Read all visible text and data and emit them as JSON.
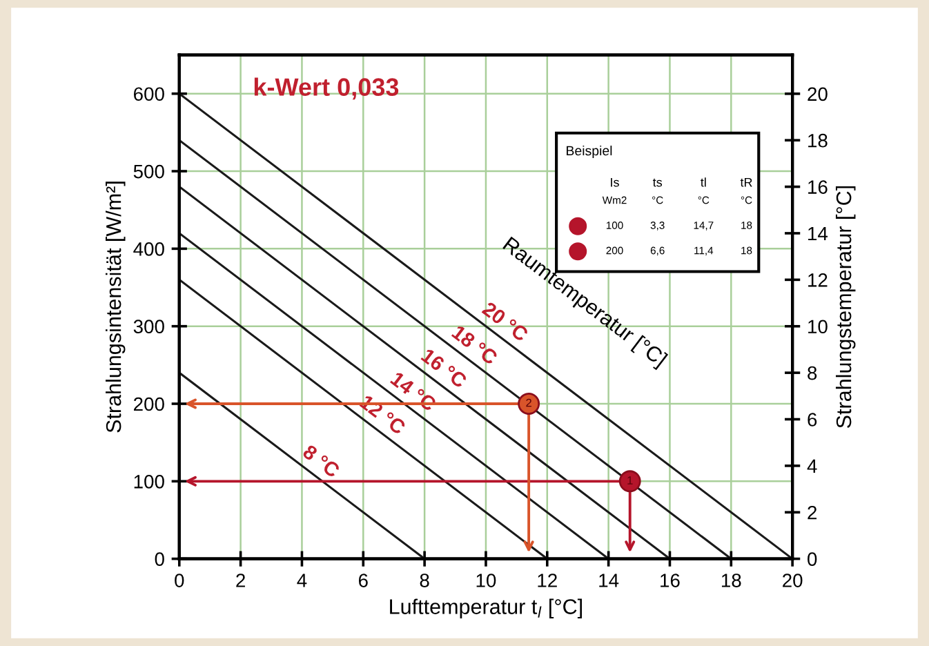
{
  "chart_data": {
    "type": "line",
    "title": "k-Wert 0,033",
    "xlabel": "Lufttemperatur t$_{l}$ [°C]",
    "ylabel": "Strahlungsintensität [W/m²]",
    "y2label": "Strahlungstemperatur [°C]",
    "xlim": [
      0,
      20
    ],
    "xticks": [
      0,
      2,
      4,
      6,
      8,
      10,
      12,
      14,
      16,
      18,
      20
    ],
    "ylim": [
      0,
      650
    ],
    "yticks": [
      0,
      100,
      200,
      300,
      400,
      500,
      600
    ],
    "y2lim": [
      0,
      21.67
    ],
    "y2ticks": [
      0,
      2,
      4,
      6,
      8,
      10,
      12,
      14,
      16,
      18,
      20
    ],
    "grid": true,
    "line_style": "solid",
    "marker": "none",
    "series": [
      {
        "name": "20 °C",
        "color": "#1a1a1a",
        "x": [
          0,
          20
        ],
        "values": [
          600,
          0
        ]
      },
      {
        "name": "18 °C",
        "color": "#1a1a1a",
        "x": [
          0,
          18
        ],
        "values": [
          540,
          0
        ]
      },
      {
        "name": "16 °C",
        "color": "#1a1a1a",
        "x": [
          0,
          16
        ],
        "values": [
          480,
          0
        ]
      },
      {
        "name": "14 °C",
        "color": "#1a1a1a",
        "x": [
          0,
          14
        ],
        "values": [
          420,
          0
        ]
      },
      {
        "name": "12 °C",
        "color": "#1a1a1a",
        "x": [
          0,
          12
        ],
        "values": [
          360,
          0
        ]
      },
      {
        "name": "8 °C",
        "color": "#1a1a1a",
        "x": [
          0,
          8
        ],
        "values": [
          240,
          0
        ]
      },
      {
        "type": "scatter",
        "color": "#b5152b",
        "x": [
          14.7
        ],
        "values": [
          100
        ],
        "marker": "circle"
      },
      {
        "type": "scatter",
        "color": "#d9542a",
        "x": [
          11.4
        ],
        "values": [
          200
        ],
        "marker": "circle"
      }
    ],
    "annotations": [
      {
        "text": "1",
        "x": 14.7,
        "y": 100
      },
      {
        "text": "2",
        "x": 11.4,
        "y": 200
      },
      "Raumtemperatur [°C]",
      "Beispiel",
      "Is",
      "ts",
      "tl",
      "tR",
      "Wm2",
      "°C",
      "°C",
      "°C",
      "100",
      "3,3",
      "14,7",
      "18",
      "200",
      "6,6",
      "11,4",
      "18"
    ]
  }
}
